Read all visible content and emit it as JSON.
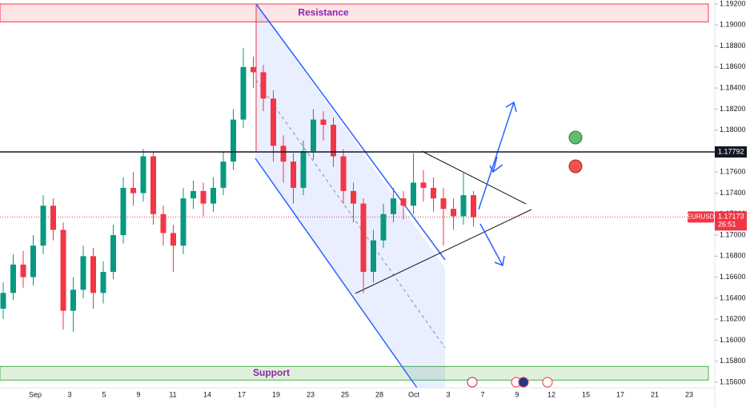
{
  "chart_data": {
    "type": "candlestick",
    "symbol": "EURUSD",
    "open": [
      1.163,
      1.1645,
      1.1672,
      1.166,
      1.169,
      1.1728,
      1.1705,
      1.1628,
      1.1648,
      1.168,
      1.1645,
      1.1665,
      1.17,
      1.1745,
      1.174,
      1.1775,
      1.172,
      1.1702,
      1.169,
      1.1735,
      1.1742,
      1.173,
      1.1745,
      1.177,
      1.181,
      1.186,
      1.1855,
      1.183,
      1.1785,
      1.177,
      1.1745,
      1.178,
      1.181,
      1.1805,
      1.1775,
      1.1742,
      1.173,
      1.1665,
      1.1695,
      1.172,
      1.1735,
      1.1728,
      1.175,
      1.1745,
      1.1735,
      1.1725,
      1.1718,
      1.1738
    ],
    "high": [
      1.1655,
      1.1682,
      1.1685,
      1.17,
      1.1738,
      1.1735,
      1.1712,
      1.166,
      1.169,
      1.1688,
      1.1675,
      1.171,
      1.1755,
      1.176,
      1.1782,
      1.178,
      1.1728,
      1.171,
      1.1745,
      1.1752,
      1.175,
      1.1755,
      1.178,
      1.182,
      1.1878,
      1.187,
      1.1862,
      1.1838,
      1.1795,
      1.1778,
      1.179,
      1.182,
      1.1818,
      1.1812,
      1.1782,
      1.175,
      1.1735,
      1.1705,
      1.173,
      1.1745,
      1.1742,
      1.1778,
      1.1762,
      1.1755,
      1.1745,
      1.1735,
      1.176,
      1.1742
    ],
    "low": [
      1.162,
      1.1638,
      1.165,
      1.1652,
      1.1682,
      1.1695,
      1.161,
      1.1608,
      1.164,
      1.163,
      1.1635,
      1.1658,
      1.1692,
      1.1728,
      1.1732,
      1.171,
      1.169,
      1.1665,
      1.1682,
      1.1725,
      1.1718,
      1.1722,
      1.1738,
      1.1762,
      1.1802,
      1.184,
      1.1818,
      1.177,
      1.175,
      1.173,
      1.1738,
      1.1772,
      1.179,
      1.1765,
      1.173,
      1.1712,
      1.1645,
      1.1655,
      1.1688,
      1.1712,
      1.1715,
      1.172,
      1.1732,
      1.1722,
      1.169,
      1.1705,
      1.171,
      1.1708
    ],
    "close": [
      1.1645,
      1.1672,
      1.166,
      1.169,
      1.1728,
      1.1705,
      1.1628,
      1.1648,
      1.168,
      1.1645,
      1.1665,
      1.17,
      1.1745,
      1.174,
      1.1775,
      1.172,
      1.1702,
      1.169,
      1.1735,
      1.1742,
      1.173,
      1.1745,
      1.177,
      1.181,
      1.186,
      1.1855,
      1.183,
      1.1785,
      1.177,
      1.1745,
      1.178,
      1.181,
      1.1805,
      1.1775,
      1.1742,
      1.173,
      1.1665,
      1.1695,
      1.172,
      1.1735,
      1.1728,
      1.175,
      1.1745,
      1.1735,
      1.1725,
      1.1718,
      1.1738,
      1.1717
    ],
    "up_color": "#089981",
    "down_color": "#f23645",
    "xlabels": [
      "Sep",
      "3",
      "5",
      "9",
      "11",
      "14",
      "17",
      "19",
      "23",
      "25",
      "28",
      "Oct",
      "3",
      "7",
      "9",
      "12",
      "15",
      "17",
      "21",
      "23"
    ],
    "ylim": [
      1.156,
      1.192
    ],
    "yticks": [
      {
        "value": 1.156,
        "label": "1.15600"
      },
      {
        "value": 1.158,
        "label": "1.15800"
      },
      {
        "value": 1.16,
        "label": "1.16000"
      },
      {
        "value": 1.162,
        "label": "1.16200"
      },
      {
        "value": 1.164,
        "label": "1.16400"
      },
      {
        "value": 1.166,
        "label": "1.16600"
      },
      {
        "value": 1.168,
        "label": "1.16800"
      },
      {
        "value": 1.17,
        "label": "1.17000"
      },
      {
        "value": 1.172,
        "label": "1.17200"
      },
      {
        "value": 1.174,
        "label": "1.17400"
      },
      {
        "value": 1.176,
        "label": "1.17600"
      },
      {
        "value": 1.178,
        "label": "1.17800"
      },
      {
        "value": 1.18,
        "label": "1.18000"
      },
      {
        "value": 1.182,
        "label": "1.18200"
      },
      {
        "value": 1.184,
        "label": "1.18400"
      },
      {
        "value": 1.186,
        "label": "1.18600"
      },
      {
        "value": 1.188,
        "label": "1.18800"
      },
      {
        "value": 1.19,
        "label": "1.19000"
      },
      {
        "value": 1.192,
        "label": "1.19200"
      }
    ],
    "level": {
      "value": 1.17792,
      "label": "1.17792"
    },
    "last_price": {
      "value": 1.17173,
      "label": "1.17173",
      "countdown": "26:51"
    },
    "zones": [
      {
        "name": "Resistance",
        "from": 1.1903,
        "to": 1.192,
        "fill": "#fde4e6",
        "stroke": "#f23645"
      },
      {
        "name": "Support",
        "from": 1.1562,
        "to": 1.1575,
        "fill": "#dff0da",
        "stroke": "#4caf50"
      }
    ]
  }
}
